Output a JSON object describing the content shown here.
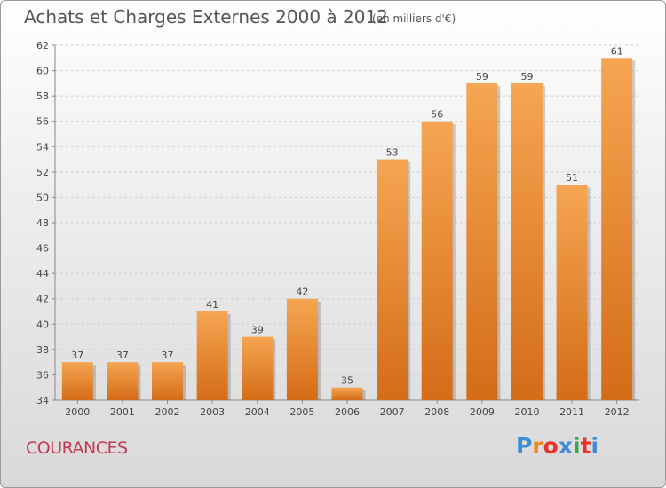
{
  "header": {
    "title": "Achats et Charges Externes 2000 à 2012",
    "subtitle": "(en milliers d'€)"
  },
  "footer": {
    "commune": "COURANCES",
    "logo_text": "Proxiti",
    "logo_colors": [
      "#3c8fd6",
      "#f28a1a",
      "#e6342a",
      "#3c8fd6",
      "#3aa648",
      "#e6342a",
      "#3c8fd6"
    ]
  },
  "colors": {
    "bar_top": "#f6a552",
    "bar_bottom": "#d46c18",
    "grid": "#cfcfcf",
    "text": "#444444",
    "commune": "#c23a57"
  },
  "chart_data": {
    "type": "bar",
    "title": "Achats et Charges Externes 2000 à 2012",
    "subtitle": "(en milliers d'€)",
    "categories": [
      "2000",
      "2001",
      "2002",
      "2003",
      "2004",
      "2005",
      "2006",
      "2007",
      "2008",
      "2009",
      "2010",
      "2011",
      "2012"
    ],
    "values": [
      37,
      37,
      37,
      41,
      39,
      42,
      35,
      53,
      56,
      59,
      59,
      51,
      61
    ],
    "ylim": [
      34,
      62
    ],
    "yticks": [
      34,
      36,
      38,
      40,
      42,
      44,
      46,
      48,
      50,
      52,
      54,
      56,
      58,
      60,
      62
    ],
    "grid": "horizontal dashed",
    "xlabel": "",
    "ylabel": ""
  }
}
